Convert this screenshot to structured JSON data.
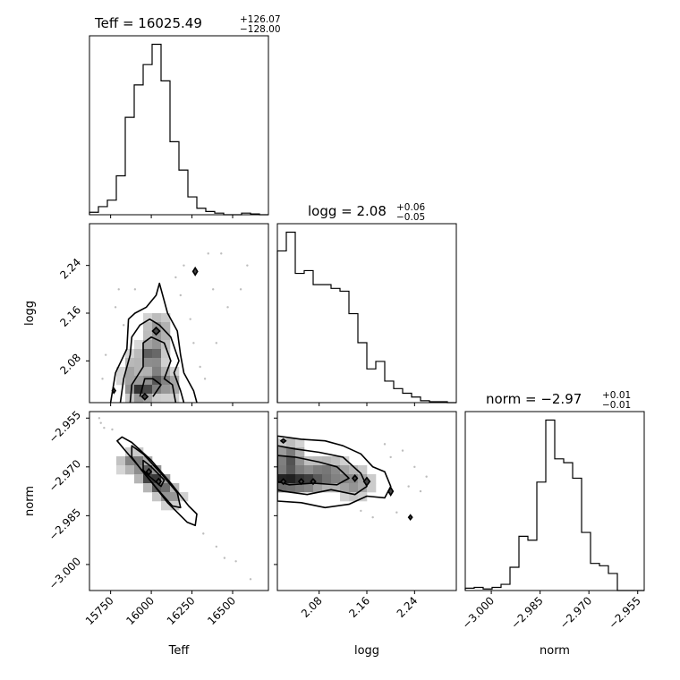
{
  "chart_data": [
    {
      "type": "histogram",
      "panel": "Teff",
      "title_label": "Teff",
      "title_value": "16025.49",
      "title_err_plus": "+126.07",
      "title_err_minus": "−128.00",
      "xlim": [
        15620,
        16720
      ],
      "bin_edges": [
        15620,
        15675,
        15730,
        15785,
        15840,
        15895,
        15950,
        16005,
        16060,
        16115,
        16170,
        16225,
        16280,
        16335,
        16390,
        16445,
        16500,
        16555,
        16610,
        16665,
        16720
      ],
      "values": [
        3,
        10,
        18,
        48,
        120,
        160,
        185,
        210,
        165,
        90,
        55,
        22,
        8,
        4,
        2,
        0,
        0,
        2,
        1,
        0
      ]
    },
    {
      "type": "histogram",
      "panel": "logg",
      "title_label": "logg",
      "title_value": "2.08",
      "title_err_plus": "+0.06",
      "title_err_minus": "−0.05",
      "xlim": [
        2.01,
        2.31
      ],
      "bin_edges": [
        2.01,
        2.025,
        2.04,
        2.055,
        2.07,
        2.085,
        2.1,
        2.115,
        2.13,
        2.145,
        2.16,
        2.175,
        2.19,
        2.205,
        2.22,
        2.235,
        2.25,
        2.265,
        2.28,
        2.295,
        2.31
      ],
      "values": [
        162,
        182,
        138,
        141,
        126,
        126,
        122,
        119,
        95,
        64,
        36,
        44,
        23,
        15,
        10,
        6,
        2,
        1,
        1,
        0
      ]
    },
    {
      "type": "histogram",
      "panel": "norm",
      "title_label": "norm",
      "title_value": "−2.97",
      "title_err_plus": "+0.01",
      "title_err_minus": "−0.01",
      "xlim": [
        -3.008,
        -2.953
      ],
      "bin_edges": [
        -3.008,
        -3.00525,
        -3.0025,
        -2.99975,
        -2.997,
        -2.99425,
        -2.9915,
        -2.98875,
        -2.986,
        -2.98325,
        -2.9805,
        -2.97775,
        -2.975,
        -2.97225,
        -2.9695,
        -2.96675,
        -2.964,
        -2.96125,
        -2.9585,
        -2.95575,
        -2.953
      ],
      "values": [
        3,
        4,
        2,
        4,
        8,
        30,
        70,
        65,
        140,
        220,
        170,
        165,
        145,
        75,
        35,
        32,
        22,
        0,
        0,
        0
      ]
    },
    {
      "type": "heatmap",
      "panel": "Teff vs logg",
      "x_param": "Teff",
      "y_param": "logg",
      "xlim": [
        15620,
        16720
      ],
      "ylim": [
        2.01,
        2.31
      ],
      "density_blobs": [
        {
          "x": 16000,
          "y": 2.09,
          "sx": 45,
          "sy": 0.012,
          "w": 1.0
        },
        {
          "x": 15940,
          "y": 2.03,
          "sx": 50,
          "sy": 0.01,
          "w": 1.2
        },
        {
          "x": 16030,
          "y": 2.05,
          "sx": 40,
          "sy": 0.015,
          "w": 0.9
        },
        {
          "x": 16040,
          "y": 2.13,
          "sx": 55,
          "sy": 0.02,
          "w": 0.6
        },
        {
          "x": 16120,
          "y": 2.04,
          "sx": 40,
          "sy": 0.015,
          "w": 0.6
        },
        {
          "x": 15880,
          "y": 2.06,
          "sx": 45,
          "sy": 0.02,
          "w": 0.5
        }
      ],
      "contours": [
        [
          [
            15750,
            2.01
          ],
          [
            15780,
            2.06
          ],
          [
            15850,
            2.1
          ],
          [
            15860,
            2.15
          ],
          [
            15900,
            2.16
          ],
          [
            15970,
            2.17
          ],
          [
            16030,
            2.19
          ],
          [
            16050,
            2.21
          ],
          [
            16100,
            2.16
          ],
          [
            16160,
            2.13
          ],
          [
            16180,
            2.09
          ],
          [
            16200,
            2.06
          ],
          [
            16260,
            2.03
          ],
          [
            16280,
            2.01
          ]
        ],
        [
          [
            15810,
            2.01
          ],
          [
            15830,
            2.05
          ],
          [
            15870,
            2.09
          ],
          [
            15880,
            2.12
          ],
          [
            15930,
            2.14
          ],
          [
            15990,
            2.15
          ],
          [
            16050,
            2.14
          ],
          [
            16120,
            2.12
          ],
          [
            16170,
            2.08
          ],
          [
            16140,
            2.06
          ],
          [
            16180,
            2.03
          ],
          [
            16200,
            2.01
          ]
        ],
        [
          [
            15870,
            2.01
          ],
          [
            15880,
            2.04
          ],
          [
            15950,
            2.07
          ],
          [
            15950,
            2.11
          ],
          [
            16000,
            2.12
          ],
          [
            16080,
            2.11
          ],
          [
            16120,
            2.08
          ],
          [
            16080,
            2.05
          ],
          [
            16130,
            2.04
          ],
          [
            16150,
            2.01
          ]
        ],
        [
          [
            15930,
            2.02
          ],
          [
            15960,
            2.05
          ],
          [
            16010,
            2.05
          ],
          [
            16060,
            2.04
          ],
          [
            16010,
            2.02
          ]
        ]
      ],
      "islands": [
        [
          16270,
          2.23,
          14,
          0.006
        ],
        [
          16030,
          2.13,
          22,
          0.006
        ],
        [
          15770,
          2.03,
          10,
          0.004
        ],
        [
          15960,
          2.02,
          18,
          0.005
        ]
      ],
      "scatter": [
        [
          16350,
          2.26
        ],
        [
          16430,
          2.26
        ],
        [
          16590,
          2.24
        ],
        [
          16470,
          2.17
        ],
        [
          16200,
          2.24
        ],
        [
          15800,
          2.2
        ],
        [
          15830,
          2.14
        ],
        [
          16180,
          2.19
        ],
        [
          16260,
          2.11
        ],
        [
          16300,
          2.07
        ],
        [
          15720,
          2.09
        ],
        [
          15700,
          2.05
        ],
        [
          16330,
          2.05
        ],
        [
          16400,
          2.11
        ],
        [
          15780,
          2.17
        ],
        [
          16240,
          2.15
        ],
        [
          16150,
          2.22
        ],
        [
          16550,
          2.2
        ],
        [
          15900,
          2.2
        ],
        [
          16380,
          2.2
        ]
      ]
    },
    {
      "type": "heatmap",
      "panel": "Teff vs norm",
      "x_param": "Teff",
      "y_param": "norm",
      "xlim": [
        15620,
        16720
      ],
      "ylim": [
        -3.008,
        -2.953
      ],
      "density_blobs": [
        {
          "x": 15900,
          "y": -2.9685,
          "sx": 60,
          "sy": 0.002,
          "w": 0.8
        },
        {
          "x": 15990,
          "y": -2.9725,
          "sx": 45,
          "sy": 0.0018,
          "w": 1.2
        },
        {
          "x": 16050,
          "y": -2.9755,
          "sx": 45,
          "sy": 0.0018,
          "w": 1.0
        },
        {
          "x": 16120,
          "y": -2.979,
          "sx": 50,
          "sy": 0.002,
          "w": 0.6
        }
      ],
      "contours": [
        [
          [
            15820,
            -2.9608
          ],
          [
            15880,
            -2.9625
          ],
          [
            16000,
            -2.968
          ],
          [
            16120,
            -2.975
          ],
          [
            16230,
            -2.982
          ],
          [
            16280,
            -2.9845
          ],
          [
            16270,
            -2.988
          ],
          [
            16220,
            -2.987
          ],
          [
            16100,
            -2.981
          ],
          [
            15960,
            -2.972
          ],
          [
            15840,
            -2.965
          ],
          [
            15790,
            -2.962
          ]
        ],
        [
          [
            15880,
            -2.9635
          ],
          [
            15950,
            -2.966
          ],
          [
            16060,
            -2.972
          ],
          [
            16160,
            -2.978
          ],
          [
            16180,
            -2.9825
          ],
          [
            16130,
            -2.982
          ],
          [
            16040,
            -2.977
          ],
          [
            15940,
            -2.971
          ],
          [
            15880,
            -2.967
          ]
        ],
        [
          [
            15950,
            -2.968
          ],
          [
            16000,
            -2.97
          ],
          [
            16080,
            -2.974
          ],
          [
            16060,
            -2.976
          ],
          [
            15990,
            -2.973
          ],
          [
            15950,
            -2.971
          ]
        ]
      ],
      "islands": [
        [
          15985,
          -2.9715,
          15,
          0.0009
        ],
        [
          16045,
          -2.9745,
          15,
          0.0009
        ]
      ],
      "scatter": [
        [
          15690,
          -2.9565
        ],
        [
          15710,
          -2.958
        ],
        [
          15680,
          -2.955
        ],
        [
          16320,
          -2.9905
        ],
        [
          16400,
          -2.9945
        ],
        [
          16520,
          -2.999
        ],
        [
          16610,
          -3.0045
        ],
        [
          16450,
          -2.998
        ],
        [
          15760,
          -2.9585
        ]
      ]
    },
    {
      "type": "heatmap",
      "panel": "logg vs norm",
      "x_param": "logg",
      "y_param": "norm",
      "xlim": [
        2.01,
        2.31
      ],
      "ylim": [
        -3.008,
        -2.953
      ],
      "density_blobs": [
        {
          "x": 2.03,
          "y": -2.968,
          "sx": 0.015,
          "sy": 0.0035,
          "w": 1.0
        },
        {
          "x": 2.05,
          "y": -2.9745,
          "sx": 0.02,
          "sy": 0.002,
          "w": 1.0
        },
        {
          "x": 2.09,
          "y": -2.972,
          "sx": 0.025,
          "sy": 0.003,
          "w": 0.8
        },
        {
          "x": 2.14,
          "y": -2.975,
          "sx": 0.02,
          "sy": 0.003,
          "w": 0.6
        },
        {
          "x": 2.02,
          "y": -2.9745,
          "sx": 0.01,
          "sy": 0.002,
          "w": 1.0
        }
      ],
      "contours": [
        [
          [
            2.01,
            -2.9605
          ],
          [
            2.05,
            -2.9615
          ],
          [
            2.09,
            -2.962
          ],
          [
            2.12,
            -2.9635
          ],
          [
            2.15,
            -2.966
          ],
          [
            2.17,
            -2.97
          ],
          [
            2.19,
            -2.9715
          ],
          [
            2.2,
            -2.976
          ],
          [
            2.19,
            -2.9795
          ],
          [
            2.16,
            -2.979
          ],
          [
            2.13,
            -2.9815
          ],
          [
            2.09,
            -2.9825
          ],
          [
            2.05,
            -2.981
          ],
          [
            2.01,
            -2.9805
          ]
        ],
        [
          [
            2.01,
            -2.9635
          ],
          [
            2.04,
            -2.9645
          ],
          [
            2.08,
            -2.9655
          ],
          [
            2.12,
            -2.967
          ],
          [
            2.15,
            -2.972
          ],
          [
            2.16,
            -2.976
          ],
          [
            2.14,
            -2.9785
          ],
          [
            2.1,
            -2.977
          ],
          [
            2.06,
            -2.9785
          ],
          [
            2.02,
            -2.9775
          ],
          [
            2.01,
            -2.977
          ]
        ],
        [
          [
            2.01,
            -2.9665
          ],
          [
            2.04,
            -2.967
          ],
          [
            2.08,
            -2.9685
          ],
          [
            2.11,
            -2.97
          ],
          [
            2.13,
            -2.9735
          ],
          [
            2.11,
            -2.9755
          ],
          [
            2.07,
            -2.975
          ],
          [
            2.03,
            -2.9755
          ],
          [
            2.01,
            -2.9745
          ]
        ]
      ],
      "islands": [
        [
          2.02,
          -2.9745,
          0.004,
          0.0008
        ],
        [
          2.05,
          -2.9745,
          0.004,
          0.0008
        ],
        [
          2.07,
          -2.9745,
          0.004,
          0.0008
        ],
        [
          2.16,
          -2.9745,
          0.005,
          0.0012
        ],
        [
          2.14,
          -2.9735,
          0.004,
          0.0009
        ],
        [
          2.2,
          -2.9775,
          0.004,
          0.0012
        ],
        [
          2.233,
          -2.9855,
          0.003,
          0.0007
        ],
        [
          2.02,
          -2.962,
          0.004,
          0.0006
        ]
      ],
      "scatter": [
        [
          2.19,
          -2.963
        ],
        [
          2.22,
          -2.965
        ],
        [
          2.24,
          -2.97
        ],
        [
          2.23,
          -2.976
        ],
        [
          2.25,
          -2.9775
        ],
        [
          2.21,
          -2.984
        ],
        [
          2.17,
          -2.9855
        ],
        [
          2.15,
          -2.9835
        ],
        [
          2.26,
          -2.973
        ],
        [
          2.2,
          -2.967
        ]
      ]
    }
  ],
  "axes": {
    "x_tick_labels": {
      "Teff": [
        "15750",
        "16000",
        "16250",
        "16500"
      ],
      "logg": [
        "2.08",
        "2.16",
        "2.24"
      ],
      "norm": [
        "−3.000",
        "−2.985",
        "−2.970",
        "−2.955"
      ]
    },
    "x_tick_values": {
      "Teff": [
        15750,
        16000,
        16250,
        16500
      ],
      "logg": [
        2.08,
        2.16,
        2.24
      ],
      "norm": [
        -3.0,
        -2.985,
        -2.97,
        -2.955
      ]
    },
    "y_tick_labels": {
      "logg": [
        "2.08",
        "2.16",
        "2.24"
      ],
      "norm": [
        "−2.955",
        "−2.970",
        "−2.985",
        "−3.000"
      ]
    },
    "y_tick_values": {
      "logg": [
        2.08,
        2.16,
        2.24
      ],
      "norm": [
        -2.955,
        -2.97,
        -2.985,
        -3.0
      ]
    },
    "x_labels": {
      "Teff": "Teff",
      "logg": "logg",
      "norm": "norm"
    },
    "y_labels": {
      "logg": "logg",
      "norm": "norm"
    }
  }
}
